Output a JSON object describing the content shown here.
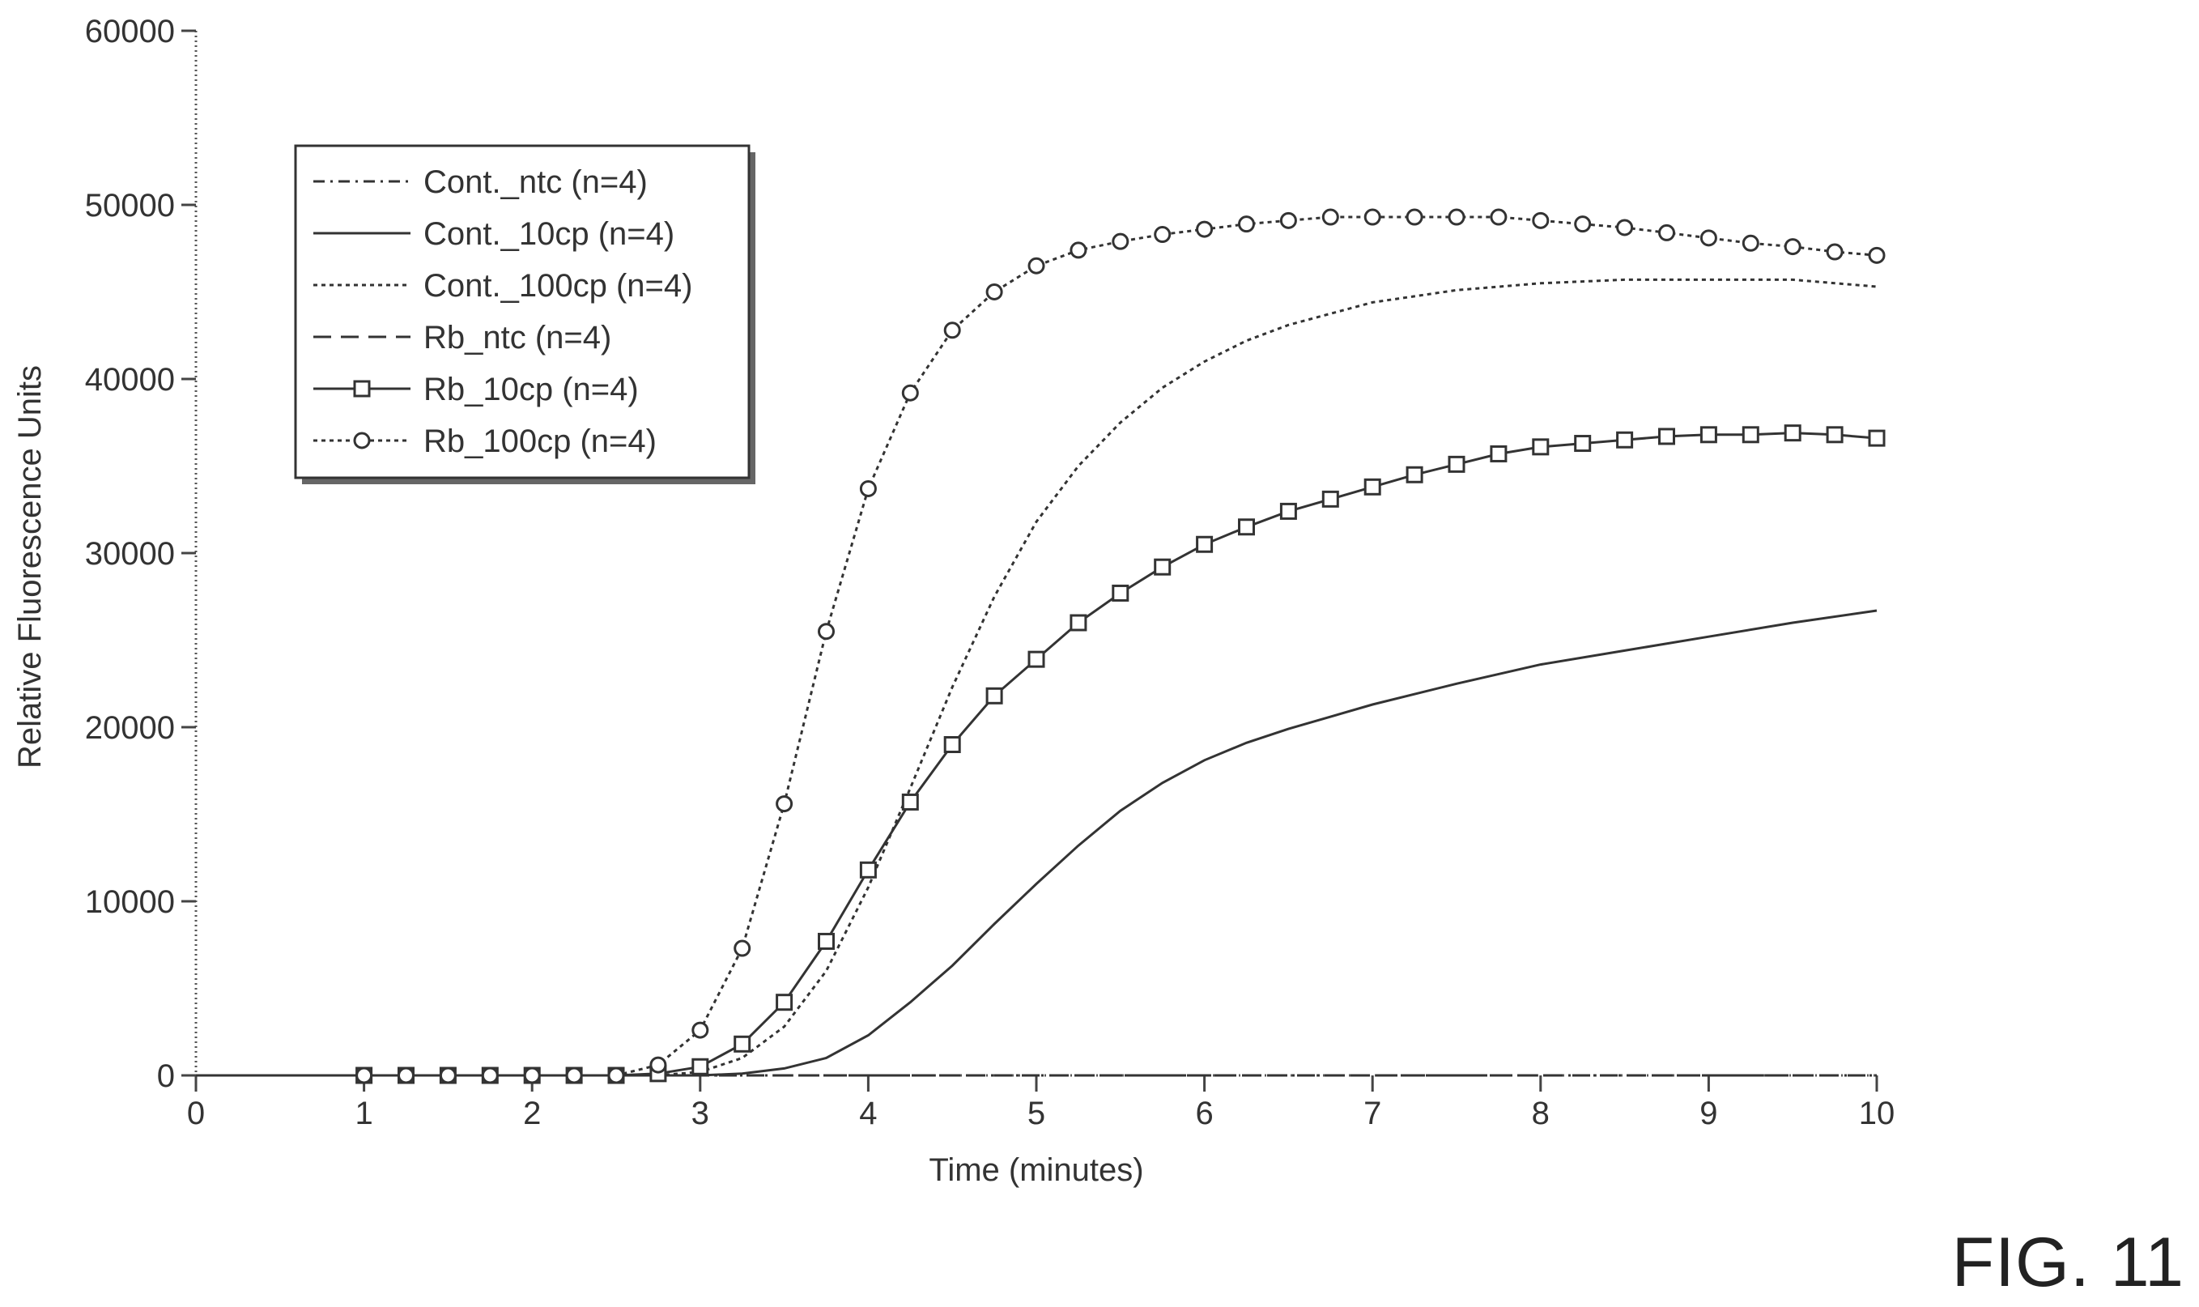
{
  "figure_label": "FIG. 11",
  "chart_data": {
    "type": "line",
    "title": "",
    "xlabel": "Time (minutes)",
    "ylabel": "Relative Fluorescence Units",
    "xlim": [
      0,
      10
    ],
    "ylim": [
      0,
      60000
    ],
    "x_ticks": [
      "0",
      "1",
      "2",
      "3",
      "4",
      "5",
      "6",
      "7",
      "8",
      "9",
      "10"
    ],
    "y_ticks": [
      "0",
      "10000",
      "20000",
      "30000",
      "40000",
      "50000",
      "60000"
    ],
    "grid": false,
    "legend_position": "top-left",
    "series": [
      {
        "name": "Cont._ntc (n=4)",
        "style": "dash-dot",
        "marker": "none",
        "x": [
          0,
          1,
          2,
          3,
          4,
          5,
          6,
          7,
          8,
          9,
          10
        ],
        "y": [
          0,
          0,
          0,
          0,
          0,
          0,
          0,
          0,
          0,
          0,
          0
        ]
      },
      {
        "name": "Cont._10cp (n=4)",
        "style": "solid",
        "marker": "none",
        "x": [
          0,
          1,
          2,
          3,
          3.25,
          3.5,
          3.75,
          4,
          4.25,
          4.5,
          4.75,
          5,
          5.25,
          5.5,
          5.75,
          6,
          6.25,
          6.5,
          7,
          7.5,
          8,
          8.5,
          9,
          9.5,
          10
        ],
        "y": [
          0,
          0,
          0,
          0,
          100,
          400,
          1000,
          2300,
          4200,
          6300,
          8700,
          11000,
          13200,
          15200,
          16800,
          18100,
          19100,
          19900,
          21300,
          22500,
          23600,
          24400,
          25200,
          26000,
          26700
        ]
      },
      {
        "name": "Cont._100cp (n=4)",
        "style": "dotted",
        "marker": "none",
        "x": [
          0,
          1,
          2,
          2.75,
          3,
          3.25,
          3.5,
          3.75,
          4,
          4.25,
          4.5,
          4.75,
          5,
          5.25,
          5.5,
          5.75,
          6,
          6.25,
          6.5,
          7,
          7.5,
          8,
          8.5,
          9,
          9.5,
          10
        ],
        "y": [
          0,
          0,
          0,
          0,
          200,
          1000,
          2800,
          6000,
          10800,
          16500,
          22300,
          27500,
          31800,
          35000,
          37500,
          39500,
          41000,
          42200,
          43100,
          44400,
          45100,
          45500,
          45700,
          45700,
          45700,
          45300
        ]
      },
      {
        "name": "Rb_ntc (n=4)",
        "style": "dashed",
        "marker": "none",
        "x": [
          0,
          1,
          2,
          3,
          4,
          5,
          6,
          7,
          8,
          9,
          10
        ],
        "y": [
          0,
          0,
          0,
          0,
          0,
          0,
          0,
          0,
          0,
          0,
          0
        ]
      },
      {
        "name": "Rb_10cp (n=4)",
        "style": "solid",
        "marker": "square",
        "x": [
          1,
          1.25,
          1.5,
          1.75,
          2,
          2.25,
          2.5,
          2.75,
          3,
          3.25,
          3.5,
          3.75,
          4,
          4.25,
          4.5,
          4.75,
          5,
          5.25,
          5.5,
          5.75,
          6,
          6.25,
          6.5,
          6.75,
          7,
          7.25,
          7.5,
          7.75,
          8,
          8.25,
          8.5,
          8.75,
          9,
          9.25,
          9.5,
          9.75,
          10
        ],
        "y": [
          0,
          0,
          0,
          0,
          0,
          0,
          0,
          100,
          500,
          1800,
          4200,
          7700,
          11800,
          15700,
          19000,
          21800,
          23900,
          26000,
          27700,
          29200,
          30500,
          31500,
          32400,
          33100,
          33800,
          34500,
          35100,
          35700,
          36100,
          36300,
          36500,
          36700,
          36800,
          36800,
          36900,
          36800,
          36600
        ]
      },
      {
        "name": "Rb_100cp (n=4)",
        "style": "dotted",
        "marker": "circle",
        "x": [
          1,
          1.25,
          1.5,
          1.75,
          2,
          2.25,
          2.5,
          2.75,
          3,
          3.25,
          3.5,
          3.75,
          4,
          4.25,
          4.5,
          4.75,
          5,
          5.25,
          5.5,
          5.75,
          6,
          6.25,
          6.5,
          6.75,
          7,
          7.25,
          7.5,
          7.75,
          8,
          8.25,
          8.5,
          8.75,
          9,
          9.25,
          9.5,
          9.75,
          10
        ],
        "y": [
          0,
          0,
          0,
          0,
          0,
          0,
          0,
          600,
          2600,
          7300,
          15600,
          25500,
          33700,
          39200,
          42800,
          45000,
          46500,
          47400,
          47900,
          48300,
          48600,
          48900,
          49100,
          49300,
          49300,
          49300,
          49300,
          49300,
          49100,
          48900,
          48700,
          48400,
          48100,
          47800,
          47600,
          47300,
          47100
        ]
      }
    ]
  }
}
